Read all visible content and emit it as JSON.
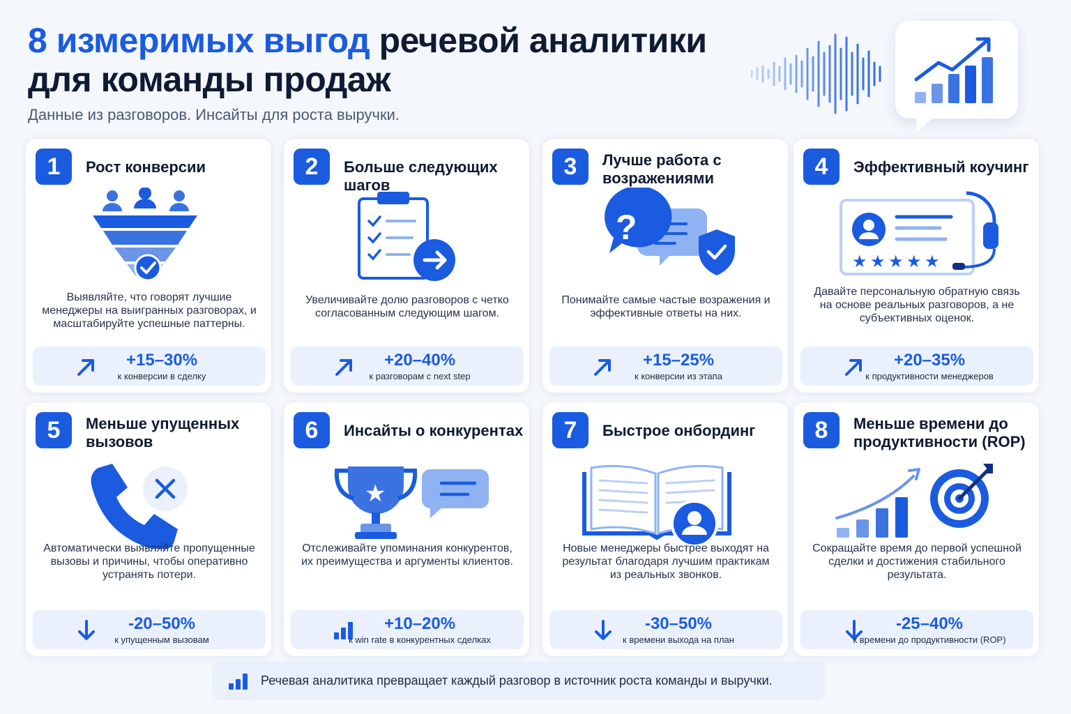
{
  "header": {
    "title_accent": "8 измеримых выгод",
    "title_rest": "речевой аналитики",
    "title_line2": "для команды продаж",
    "subtitle": "Данные из разговоров. Инсайты для роста выручки."
  },
  "colors": {
    "accent": "#1a5be0",
    "light": "#eaf1fd",
    "icon_light": "#8fb3f2"
  },
  "cards": [
    {
      "num": "1",
      "title": "Рост конверсии",
      "icon": "funnel-icon",
      "desc": "Выявляйте, что говорят лучшие менеджеры на выигранных разговорах, и масштабируйте успешные паттерны.",
      "metric_icon": "arrow-up-right-icon",
      "value": "+15–30%",
      "label": "к конверсии в сделку"
    },
    {
      "num": "2",
      "title": "Больше следующих шагов",
      "icon": "clipboard-checklist-icon",
      "desc": "Увеличивайте долю разговоров с четко согласованным следующим шагом.",
      "metric_icon": "arrow-up-right-icon",
      "value": "+20–40%",
      "label": "к разговорам с next step"
    },
    {
      "num": "3",
      "title": "Лучше работа с возражениями",
      "icon": "chat-question-shield-icon",
      "desc": "Понимайте самые частые возражения и эффективные ответы на них.",
      "metric_icon": "arrow-up-right-icon",
      "value": "+15–25%",
      "label": "к конверсии из этапа"
    },
    {
      "num": "4",
      "title": "Эффективный коучинг",
      "icon": "headset-rating-icon",
      "desc": "Давайте персональную обратную связь на основе реальных разговоров, а не субъективных оценок.",
      "metric_icon": "arrow-up-right-icon",
      "value": "+20–35%",
      "label": "к продуктивности менеджеров"
    },
    {
      "num": "5",
      "title": "Меньше упущенных вызовов",
      "icon": "missed-call-icon",
      "desc": "Автоматически выявляйте пропущенные вызовы и причины, чтобы оперативно устранять потери.",
      "metric_icon": "arrow-down-icon",
      "value": "-20–50%",
      "label": "к упущенным вызовам"
    },
    {
      "num": "6",
      "title": "Инсайты о конкурентах",
      "icon": "trophy-chat-icon",
      "desc": "Отслеживайте упоминания конкурентов, их преимущества и аргументы клиентов.",
      "metric_icon": "bar-chart-icon",
      "value": "+10–20%",
      "label": "к win rate в конкурентных сделках"
    },
    {
      "num": "7",
      "title": "Быстрое онбординг",
      "icon": "book-user-icon",
      "desc": "Новые менеджеры быстрее выходят на результат благодаря лучшим практикам из реальных звонков.",
      "metric_icon": "arrow-down-icon",
      "value": "-30–50%",
      "label": "к времени выхода на план"
    },
    {
      "num": "8",
      "title": "Меньше времени до продуктивности (ROP)",
      "icon": "growth-target-icon",
      "desc": "Сокращайте время до первой успешной сделки и достижения стабильного результата.",
      "metric_icon": "arrow-down-icon",
      "value": "-25–40%",
      "label": "к времени до продуктивности (ROP)"
    }
  ],
  "footer": {
    "icon": "bar-chart-icon",
    "text": "Речевая аналитика превращает каждый разговор в источник роста команды и выручки."
  }
}
